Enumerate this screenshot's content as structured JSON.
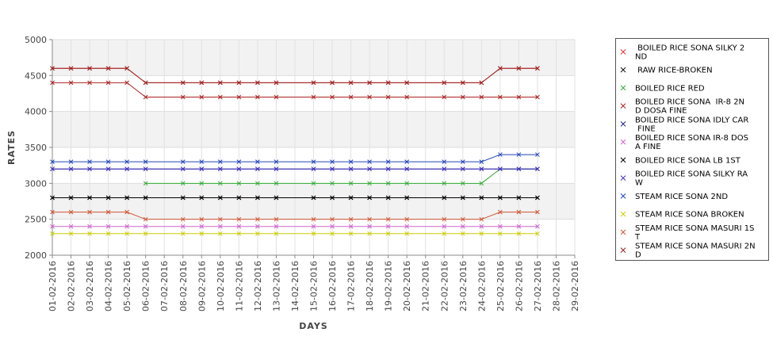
{
  "chart_data": {
    "type": "line",
    "xlabel": "DAYS",
    "ylabel": "RATES",
    "ylim": [
      2000,
      5000
    ],
    "yticks": [
      2000,
      2500,
      3000,
      3500,
      4000,
      4500,
      5000
    ],
    "grid": true,
    "legend_position": "right",
    "categories": [
      "01-02-2016",
      "02-02-2016",
      "03-02-2016",
      "04-02-2016",
      "05-02-2016",
      "06-02-2016",
      "07-02-2016",
      "08-02-2016",
      "09-02-2016",
      "10-02-2016",
      "11-02-2016",
      "12-02-2016",
      "13-02-2016",
      "14-02-2016",
      "15-02-2016",
      "16-02-2016",
      "17-02-2016",
      "18-02-2016",
      "19-02-2016",
      "20-02-2016",
      "21-02-2016",
      "22-02-2016",
      "23-02-2016",
      "24-02-2016",
      "25-02-2016",
      "26-02-2016",
      "27-02-2016",
      "28-02-2016",
      "29-02-2016"
    ],
    "series": [
      {
        "name": "BOILED RICE SONA SILKY 2 ND",
        "color": "#dd3333",
        "values": [
          4600,
          4600,
          4600,
          4600,
          4600,
          4400,
          null,
          4400,
          4400,
          4400,
          4400,
          4400,
          4400,
          null,
          4400,
          4400,
          4400,
          4400,
          4400,
          4400,
          null,
          4400,
          4400,
          4400,
          4600,
          4600,
          4600,
          null,
          null
        ]
      },
      {
        "name": "RAW RICE-BROKEN",
        "color": "#111111",
        "values": [
          2800,
          2800,
          2800,
          2800,
          2800,
          2800,
          null,
          2800,
          2800,
          2800,
          2800,
          2800,
          2800,
          null,
          2800,
          2800,
          2800,
          2800,
          2800,
          2800,
          null,
          2800,
          2800,
          2800,
          2800,
          2800,
          2800,
          null,
          null
        ]
      },
      {
        "name": "BOILED RICE RED",
        "color": "#33aa33",
        "values": [
          null,
          null,
          null,
          null,
          null,
          3000,
          null,
          3000,
          3000,
          3000,
          3000,
          3000,
          3000,
          null,
          3000,
          3000,
          3000,
          3000,
          3000,
          3000,
          null,
          3000,
          3000,
          3000,
          3200,
          3200,
          3200,
          null,
          null
        ]
      },
      {
        "name": "BOILED RICE SONA IR-8 2ND DOSA FINE",
        "color": "#aa2222",
        "values": [
          4400,
          4400,
          4400,
          4400,
          4400,
          4200,
          null,
          4200,
          4200,
          4200,
          4200,
          4200,
          4200,
          null,
          4200,
          4200,
          4200,
          4200,
          4200,
          4200,
          null,
          4200,
          4200,
          4200,
          4200,
          4200,
          4200,
          null,
          null
        ]
      },
      {
        "name": "BOILED RICE SONA IDLY CAR FINE",
        "color": "#222288",
        "values": [
          3200,
          3200,
          3200,
          3200,
          3200,
          3200,
          null,
          3200,
          3200,
          3200,
          3200,
          3200,
          3200,
          null,
          3200,
          3200,
          3200,
          3200,
          3200,
          3200,
          null,
          3200,
          3200,
          3200,
          3200,
          3200,
          3200,
          null,
          null
        ]
      },
      {
        "name": "BOILED RICE SONA IR-8 DOSA FINE",
        "color": "#cc66cc",
        "values": [
          2400,
          2400,
          2400,
          2400,
          2400,
          2400,
          null,
          2400,
          2400,
          2400,
          2400,
          2400,
          2400,
          null,
          2400,
          2400,
          2400,
          2400,
          2400,
          2400,
          null,
          2400,
          2400,
          2400,
          2400,
          2400,
          2400,
          null,
          null
        ]
      },
      {
        "name": "BOILED RICE SONA LB 1ST",
        "color": "#000000",
        "values": [
          2800,
          2800,
          2800,
          2800,
          2800,
          2800,
          null,
          2800,
          2800,
          2800,
          2800,
          2800,
          2800,
          null,
          2800,
          2800,
          2800,
          2800,
          2800,
          2800,
          null,
          2800,
          2800,
          2800,
          2800,
          2800,
          2800,
          null,
          null
        ]
      },
      {
        "name": "BOILED RICE SONA SILKY RAW",
        "color": "#4433bb",
        "values": [
          3200,
          3200,
          3200,
          3200,
          3200,
          3200,
          null,
          3200,
          3200,
          3200,
          3200,
          3200,
          3200,
          null,
          3200,
          3200,
          3200,
          3200,
          3200,
          3200,
          null,
          3200,
          3200,
          3200,
          3200,
          3200,
          3200,
          null,
          null
        ]
      },
      {
        "name": "STEAM RICE SONA 2ND",
        "color": "#2244bb",
        "values": [
          3300,
          3300,
          3300,
          3300,
          3300,
          3300,
          null,
          3300,
          3300,
          3300,
          3300,
          3300,
          3300,
          null,
          3300,
          3300,
          3300,
          3300,
          3300,
          3300,
          null,
          3300,
          3300,
          3300,
          3400,
          3400,
          3400,
          null,
          null
        ]
      },
      {
        "name": "STEAM RICE SONA BROKEN",
        "color": "#cccc00",
        "values": [
          2300,
          2300,
          2300,
          2300,
          2300,
          2300,
          null,
          2300,
          2300,
          2300,
          2300,
          2300,
          2300,
          null,
          2300,
          2300,
          2300,
          2300,
          2300,
          2300,
          null,
          2300,
          2300,
          2300,
          2300,
          2300,
          2300,
          null,
          null
        ]
      },
      {
        "name": "STEAM RICE SONA MASURI 1ST",
        "color": "#cc5533",
        "values": [
          2600,
          2600,
          2600,
          2600,
          2600,
          2500,
          null,
          2500,
          2500,
          2500,
          2500,
          2500,
          2500,
          null,
          2500,
          2500,
          2500,
          2500,
          2500,
          2500,
          null,
          2500,
          2500,
          2500,
          2600,
          2600,
          2600,
          null,
          null
        ]
      },
      {
        "name": "STEAM RICE SONA MASURI 2ND",
        "color": "#992222",
        "values": [
          4600,
          4600,
          4600,
          4600,
          4600,
          4400,
          null,
          4400,
          4400,
          4400,
          4400,
          4400,
          4400,
          null,
          4400,
          4400,
          4400,
          4400,
          4400,
          4400,
          null,
          4400,
          4400,
          4400,
          4600,
          4600,
          4600,
          null,
          null
        ]
      }
    ]
  },
  "legend": {
    "items": [
      {
        "lines": [
          " BOILED RICE SONA SILKY 2",
          "ND"
        ],
        "marker": "x",
        "color": "#dd3333"
      },
      {
        "lines": [
          " RAW RICE-BROKEN"
        ],
        "marker": "x",
        "color": "#111111"
      },
      {
        "lines": [
          "BOILED RICE RED"
        ],
        "marker": "x",
        "color": "#33aa33"
      },
      {
        "lines": [
          "BOILED RICE SONA  IR-8 2N",
          "D DOSA FINE"
        ],
        "marker": "x",
        "color": "#aa2222"
      },
      {
        "lines": [
          "BOILED RICE SONA IDLY CAR",
          " FINE"
        ],
        "marker": "x",
        "color": "#222288"
      },
      {
        "lines": [
          "BOILED RICE SONA IR-8 DOS",
          "A FINE"
        ],
        "marker": "x",
        "color": "#cc66cc"
      },
      {
        "lines": [
          "BOILED RICE SONA LB 1ST"
        ],
        "marker": "x",
        "color": "#000000"
      },
      {
        "lines": [
          "BOILED RICE SONA SILKY RA",
          "W"
        ],
        "marker": "x",
        "color": "#4433bb"
      },
      {
        "lines": [
          "STEAM RICE SONA 2ND"
        ],
        "marker": "x",
        "color": "#2244bb"
      },
      {
        "lines": [
          "STEAM RICE SONA BROKEN"
        ],
        "marker": "x",
        "color": "#cccc00"
      },
      {
        "lines": [
          "STEAM RICE SONA MASURI 1S",
          "T"
        ],
        "marker": "x",
        "color": "#cc5533"
      },
      {
        "lines": [
          "STEAM RICE SONA MASURI 2N",
          "D"
        ],
        "marker": "x",
        "color": "#992222"
      }
    ]
  }
}
